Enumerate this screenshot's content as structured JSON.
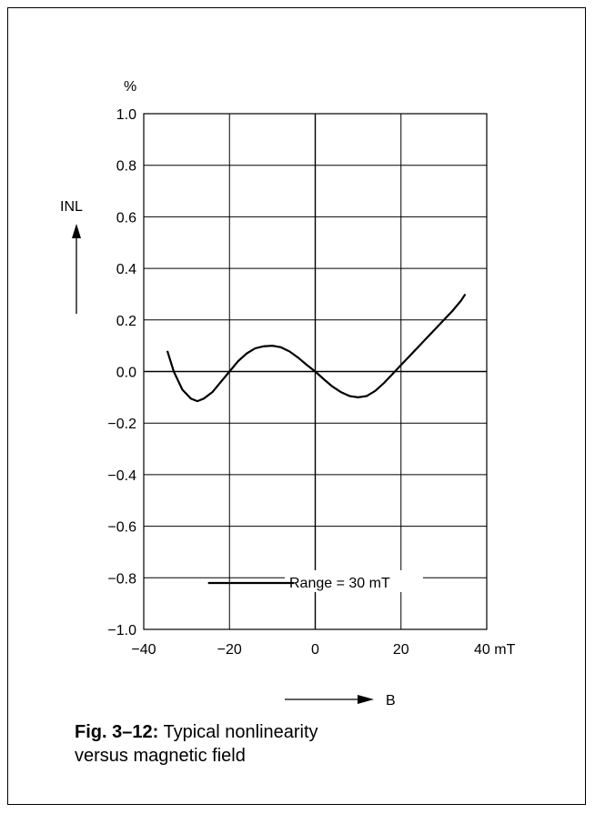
{
  "chart_data": {
    "type": "line",
    "title": "",
    "xlabel": "B",
    "ylabel": "INL",
    "y_unit": "%",
    "x_unit": "mT",
    "xlim": [
      -40,
      40
    ],
    "ylim": [
      -1.0,
      1.0
    ],
    "x_ticks": [
      "−40",
      "−20",
      "0",
      "20",
      "40 mT"
    ],
    "y_ticks": [
      "1.0",
      "0.8",
      "0.6",
      "0.4",
      "0.2",
      "0.0",
      "−0.2",
      "−0.4",
      "−0.6",
      "−0.8",
      "−1.0"
    ],
    "grid": true,
    "series": [
      {
        "x": [
          -34.5,
          -33,
          -31,
          -29,
          -27.5,
          -26,
          -24,
          -22,
          -20,
          -18,
          -16,
          -14,
          -12,
          -10,
          -8,
          -6,
          -4,
          -2,
          0,
          2,
          4,
          6,
          8,
          10,
          12,
          14,
          16,
          18,
          20,
          22,
          24,
          26,
          28,
          30,
          32,
          34,
          35
        ],
        "values": [
          0.08,
          0.0,
          -0.07,
          -0.105,
          -0.115,
          -0.105,
          -0.08,
          -0.04,
          0.0,
          0.04,
          0.07,
          0.09,
          0.098,
          0.1,
          0.094,
          0.078,
          0.054,
          0.026,
          0.0,
          -0.03,
          -0.058,
          -0.08,
          -0.095,
          -0.1,
          -0.095,
          -0.075,
          -0.045,
          -0.01,
          0.025,
          0.06,
          0.095,
          0.13,
          0.165,
          0.2,
          0.235,
          0.275,
          0.3
        ]
      }
    ],
    "annotation": "Range = 30 mT"
  },
  "caption": {
    "label": "Fig. 3–12:",
    "text": " Typical nonlinearity",
    "line2": "versus magnetic field"
  }
}
